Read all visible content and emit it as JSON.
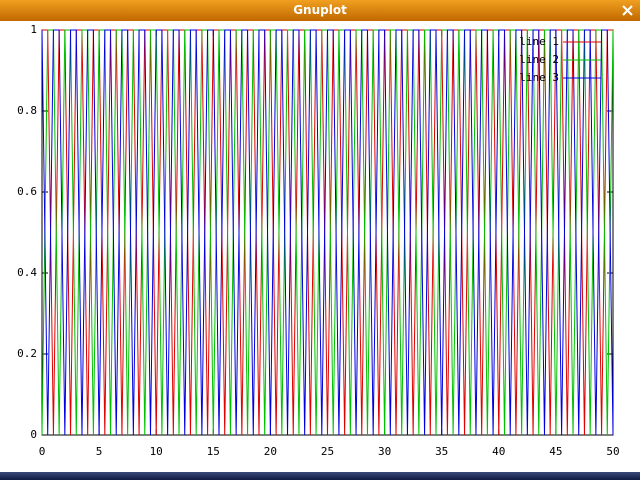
{
  "window": {
    "title": "Gnuplot"
  },
  "chart_data": {
    "type": "line",
    "x": [
      0,
      0.5,
      1,
      1.5,
      2,
      2.5,
      3,
      3.5,
      4,
      4.5,
      5,
      5.5,
      6,
      6.5,
      7,
      7.5,
      8,
      8.5,
      9,
      9.5,
      10,
      10.5,
      11,
      11.5,
      12,
      12.5,
      13,
      13.5,
      14,
      14.5,
      15,
      15.5,
      16,
      16.5,
      17,
      17.5,
      18,
      18.5,
      19,
      19.5,
      20,
      20.5,
      21,
      21.5,
      22,
      22.5,
      23,
      23.5,
      24,
      24.5,
      25,
      25.5,
      26,
      26.5,
      27,
      27.5,
      28,
      28.5,
      29,
      29.5,
      30,
      30.5,
      31,
      31.5,
      32,
      32.5,
      33,
      33.5,
      34,
      34.5,
      35,
      35.5,
      36,
      36.5,
      37,
      37.5,
      38,
      38.5,
      39,
      39.5,
      40,
      40.5,
      41,
      41.5,
      42,
      42.5,
      43,
      43.5,
      44,
      44.5,
      45,
      45.5,
      46,
      46.5,
      47,
      47.5,
      48,
      48.5,
      49,
      49.5,
      50
    ],
    "series": [
      {
        "name": "line 1",
        "color": "#e00000",
        "values": [
          1,
          1,
          0,
          1,
          1,
          0,
          1,
          1,
          0,
          1,
          1,
          0,
          1,
          1,
          0,
          1,
          1,
          0,
          1,
          1,
          0,
          1,
          1,
          0,
          1,
          1,
          0,
          1,
          1,
          0,
          1,
          1,
          0,
          1,
          1,
          0,
          1,
          1,
          0,
          1,
          1,
          0,
          1,
          1,
          0,
          1,
          1,
          0,
          1,
          1,
          0,
          1,
          1,
          0,
          1,
          1,
          0,
          1,
          1,
          0,
          1,
          1,
          0,
          1,
          1,
          0,
          1,
          1,
          0,
          1,
          1,
          0,
          1,
          1,
          0,
          1,
          1,
          0,
          1,
          1,
          0,
          1,
          1,
          0,
          1,
          1,
          0,
          1,
          1,
          0,
          1,
          1,
          0,
          1,
          1,
          0,
          1,
          1,
          0,
          1,
          1
        ]
      },
      {
        "name": "line 2",
        "color": "#00c000",
        "values": [
          0,
          1,
          1,
          0,
          1,
          1,
          0,
          1,
          1,
          0,
          1,
          1,
          0,
          1,
          1,
          0,
          1,
          1,
          0,
          1,
          1,
          0,
          1,
          1,
          0,
          1,
          1,
          0,
          1,
          1,
          0,
          1,
          1,
          0,
          1,
          1,
          0,
          1,
          1,
          0,
          1,
          1,
          0,
          1,
          1,
          0,
          1,
          1,
          0,
          1,
          1,
          0,
          1,
          1,
          0,
          1,
          1,
          0,
          1,
          1,
          0,
          1,
          1,
          0,
          1,
          1,
          0,
          1,
          1,
          0,
          1,
          1,
          0,
          1,
          1,
          0,
          1,
          1,
          0,
          1,
          1,
          0,
          1,
          1,
          0,
          1,
          1,
          0,
          1,
          1,
          0,
          1,
          1,
          0,
          1,
          1,
          0,
          1,
          1,
          0,
          1
        ]
      },
      {
        "name": "line 3",
        "color": "#0000e0",
        "values": [
          1,
          0,
          1,
          1,
          0,
          1,
          1,
          0,
          1,
          1,
          0,
          1,
          1,
          0,
          1,
          1,
          0,
          1,
          1,
          0,
          1,
          1,
          0,
          1,
          1,
          0,
          1,
          1,
          0,
          1,
          1,
          0,
          1,
          1,
          0,
          1,
          1,
          0,
          1,
          1,
          0,
          1,
          1,
          0,
          1,
          1,
          0,
          1,
          1,
          0,
          1,
          1,
          0,
          1,
          1,
          0,
          1,
          1,
          0,
          1,
          1,
          0,
          1,
          1,
          0,
          1,
          1,
          0,
          1,
          1,
          0,
          1,
          1,
          0,
          1,
          1,
          0,
          1,
          1,
          0,
          1,
          1,
          0,
          1,
          1,
          0,
          1,
          1,
          0,
          1,
          1,
          0,
          1,
          1,
          0,
          1,
          1,
          0,
          1,
          1,
          0
        ]
      }
    ],
    "xlim": [
      0,
      50
    ],
    "xticks": [
      0,
      5,
      10,
      15,
      20,
      25,
      30,
      35,
      40,
      45,
      50
    ],
    "ylim": [
      0,
      1
    ],
    "yticks": [
      0,
      0.2,
      0.4,
      0.6,
      0.8,
      1
    ],
    "legend": "top right"
  }
}
